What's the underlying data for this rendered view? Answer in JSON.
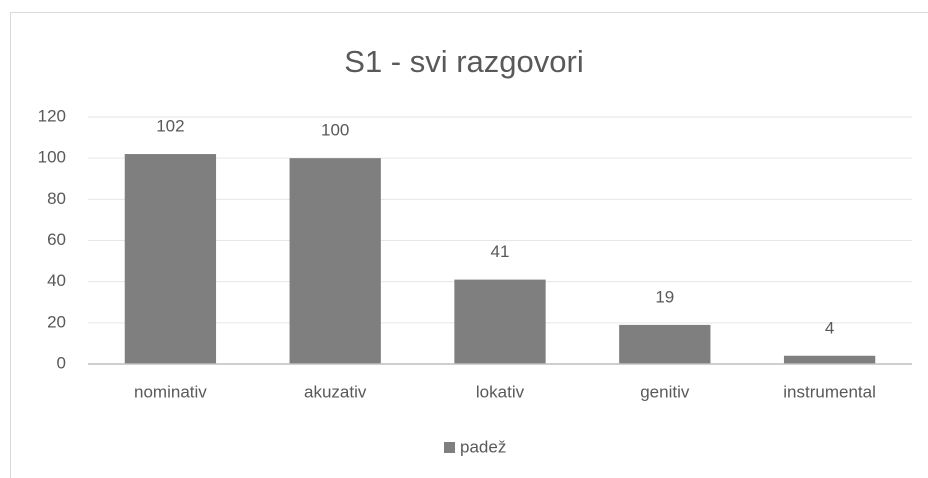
{
  "chart_data": {
    "type": "bar",
    "title": "S1 - svi razgovori",
    "categories": [
      "nominativ",
      "akuzativ",
      "lokativ",
      "genitiv",
      "instrumental"
    ],
    "series": [
      {
        "name": "padež",
        "color": "#7f7f7f",
        "values": [
          102,
          100,
          41,
          19,
          4
        ]
      }
    ],
    "ylim": [
      0,
      120
    ],
    "yticks": [
      0,
      20,
      40,
      60,
      80,
      100,
      120
    ],
    "grid": true,
    "legend": "bottom"
  }
}
